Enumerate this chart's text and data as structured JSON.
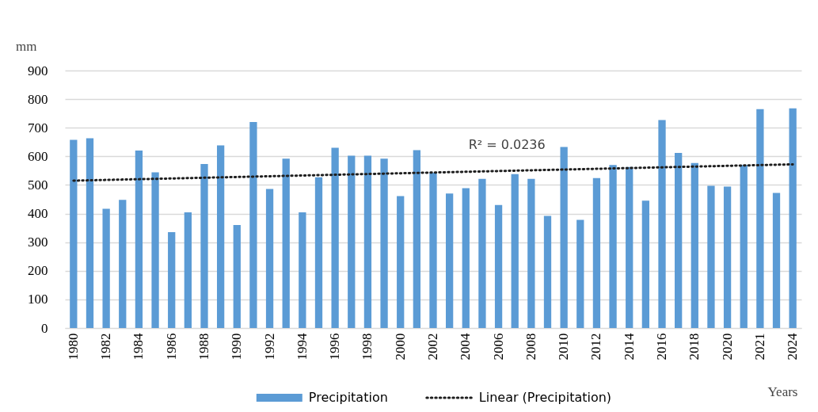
{
  "chart_data": {
    "type": "bar",
    "ylabel": "mm",
    "xlabel": "Years",
    "categories": [
      "1980",
      null,
      "1982",
      null,
      "1984",
      null,
      "1986",
      null,
      "1988",
      null,
      "1990",
      null,
      "1992",
      null,
      "1994",
      null,
      "1996",
      null,
      "1998",
      null,
      "2000",
      null,
      "2002",
      null,
      "2004",
      null,
      "2006",
      null,
      "2008",
      null,
      "2010",
      null,
      "2012",
      null,
      "2014",
      null,
      "2016",
      null,
      "2018",
      null,
      "2020",
      null,
      "2021",
      null,
      "2024"
    ],
    "series": [
      {
        "name": "Precipitation",
        "type": "bar",
        "color": "#5b9bd5",
        "values": [
          658,
          663,
          417,
          448,
          620,
          544,
          335,
          404,
          573,
          638,
          360,
          720,
          486,
          592,
          404,
          527,
          630,
          602,
          602,
          592,
          461,
          622,
          543,
          470,
          489,
          521,
          430,
          538,
          521,
          392,
          633,
          378,
          524,
          570,
          563,
          445,
          727,
          612,
          577,
          497,
          494,
          570,
          765,
          472,
          768
        ]
      },
      {
        "name": "Linear (Precipitation)",
        "type": "line",
        "color": "#1f1f1f",
        "line_style": "dotted",
        "values": [
          515,
          null,
          null,
          null,
          null,
          null,
          null,
          null,
          null,
          null,
          null,
          null,
          null,
          null,
          null,
          null,
          null,
          null,
          null,
          null,
          null,
          null,
          null,
          null,
          null,
          null,
          null,
          null,
          null,
          null,
          null,
          null,
          null,
          null,
          null,
          null,
          null,
          null,
          null,
          null,
          null,
          null,
          null,
          null,
          572
        ]
      }
    ],
    "annotations": [
      "R² = 0.0236"
    ],
    "ylim": [
      0,
      900
    ],
    "yticks": [
      0,
      100,
      200,
      300,
      400,
      500,
      600,
      700,
      800,
      900
    ],
    "grid": "y",
    "legend": "bottom"
  }
}
